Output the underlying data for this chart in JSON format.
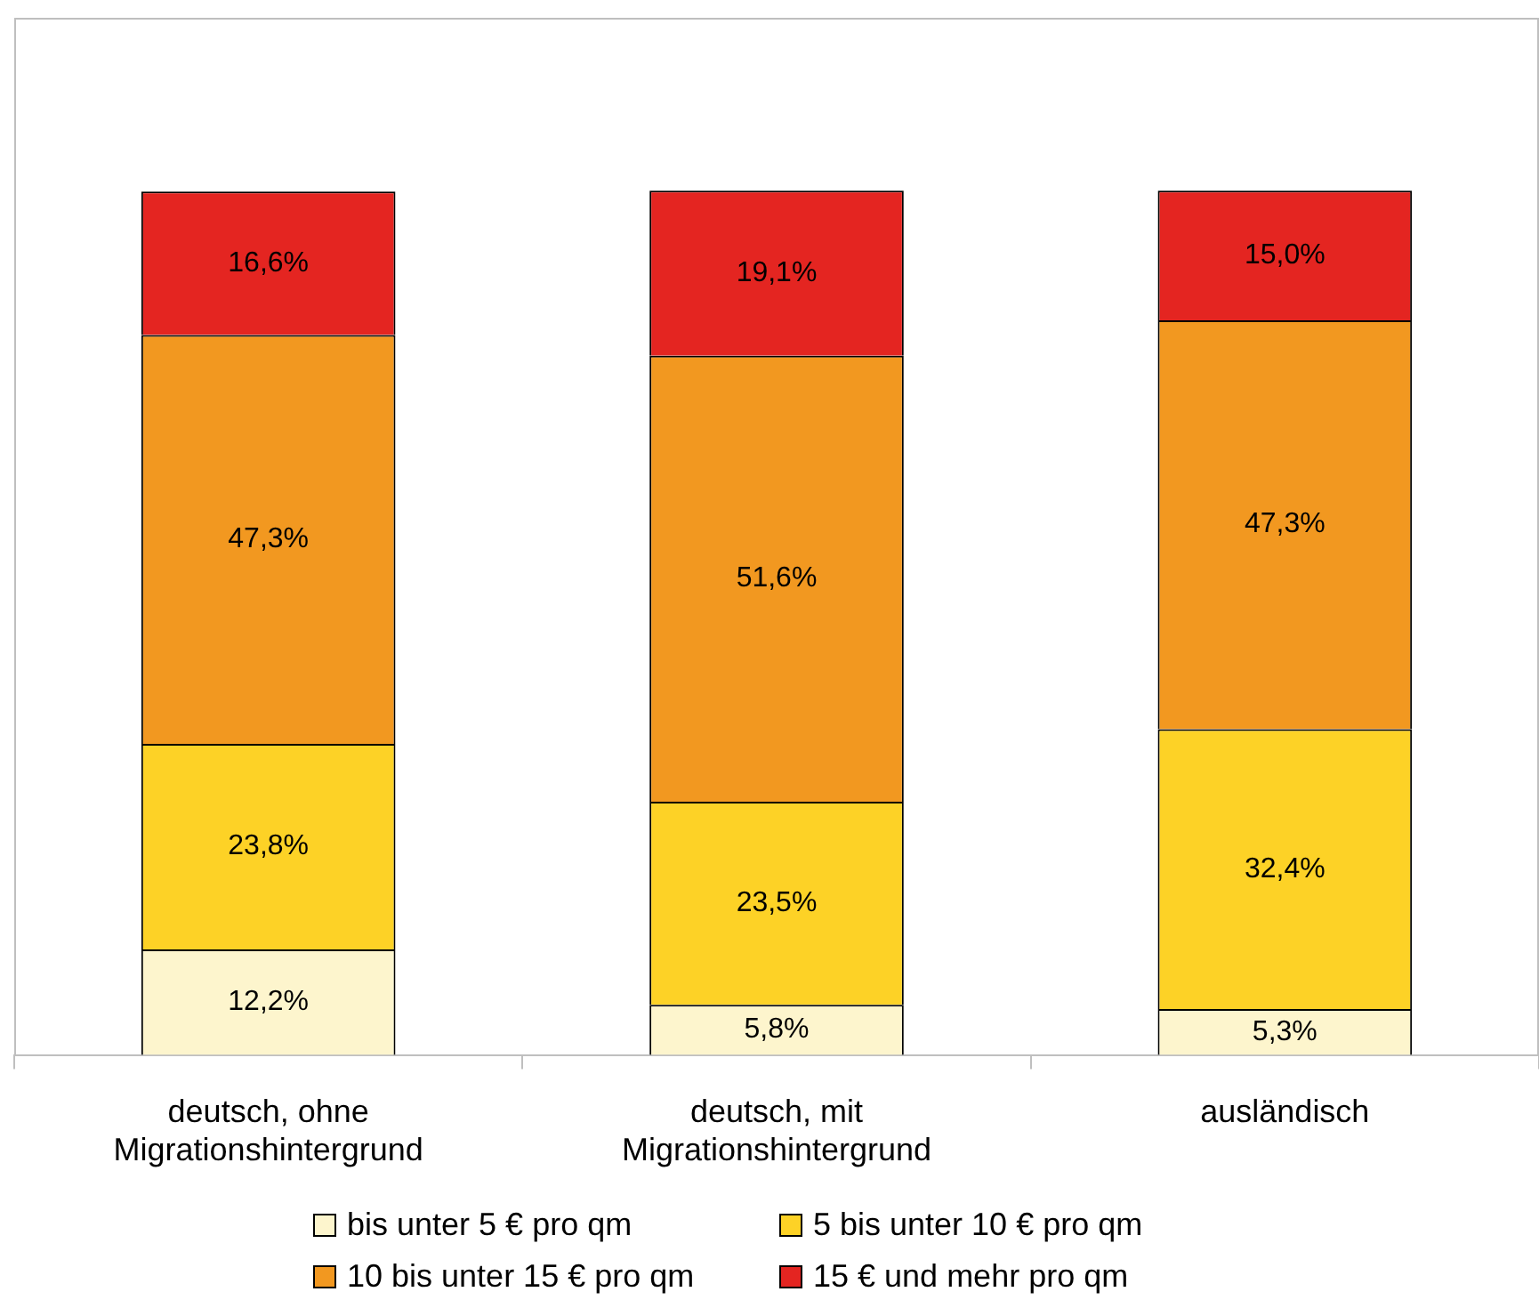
{
  "chart_data": {
    "type": "bar",
    "stacked": true,
    "categories": [
      "deutsch, ohne Migrationshintergrund",
      "deutsch, mit Migrationshintergrund",
      "ausländisch"
    ],
    "series": [
      {
        "name": "bis unter 5 € pro qm",
        "color": "#fdf5cd",
        "values": [
          12.2,
          5.8,
          5.3
        ],
        "value_labels": [
          "12,2%",
          "5,8%",
          "5,3%"
        ]
      },
      {
        "name": "5 bis unter 10 € pro qm",
        "color": "#fdd226",
        "values": [
          23.8,
          23.5,
          32.4
        ],
        "value_labels": [
          "23,8%",
          "23,5%",
          "32,4%"
        ]
      },
      {
        "name": "10 bis unter 15 € pro qm",
        "color": "#f29820",
        "values": [
          47.3,
          51.6,
          47.3
        ],
        "value_labels": [
          "47,3%",
          "51,6%",
          "47,3%"
        ]
      },
      {
        "name": "15 € und mehr pro qm",
        "color": "#e42521",
        "values": [
          16.6,
          19.1,
          15.0
        ],
        "value_labels": [
          "16,6%",
          "19,1%",
          "15,0%"
        ]
      }
    ],
    "ylim": [
      0,
      120
    ],
    "tick_labels": "x",
    "grid": false,
    "legend": "bottom"
  }
}
